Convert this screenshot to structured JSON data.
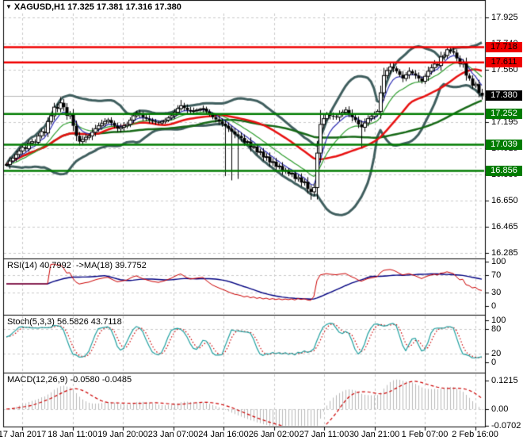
{
  "window": {
    "title_symbol": "XAGUSD,H1",
    "title_quotes": "17.325 17.381 17.316 17.380"
  },
  "icons": {
    "dropdown_glyph": "▼"
  },
  "chart_data": {
    "type": "candlestick",
    "symbol": "XAGUSD",
    "timeframe": "H1",
    "quotes": {
      "open": 17.325,
      "high": 17.381,
      "low": 17.316,
      "close": 17.38
    },
    "x_labels": [
      "17 Jan 2017",
      "18 Jan 11:00",
      "19 Jan 20:00",
      "23 Jan 07:00",
      "24 Jan 16:00",
      "26 Jan 02:00",
      "27 Jan 11:00",
      "30 Jan 21:00",
      "1 Feb 07:00",
      "2 Feb 16:00"
    ],
    "price_axis": {
      "ticks": [
        17.925,
        17.74,
        17.56,
        17.38,
        17.195,
        17.015,
        16.83,
        16.65,
        16.465,
        16.285
      ]
    },
    "price_badges": [
      {
        "text": "17.718",
        "price": 17.718,
        "bg": "#f00000",
        "fg": "#000000"
      },
      {
        "text": "17.611",
        "price": 17.611,
        "bg": "#f00000",
        "fg": "#000000"
      },
      {
        "text": "17.380",
        "price": 17.38,
        "bg": "#000000",
        "fg": "#ffffff"
      },
      {
        "text": "17.252",
        "price": 17.252,
        "bg": "#007c00",
        "fg": "#ffffff"
      },
      {
        "text": "17.039",
        "price": 17.039,
        "bg": "#007c00",
        "fg": "#ffffff"
      },
      {
        "text": "16.856",
        "price": 16.856,
        "bg": "#007c00",
        "fg": "#ffffff"
      }
    ],
    "horizontal_lines": [
      {
        "price": 17.718,
        "color": "#f00000",
        "width": 2.5
      },
      {
        "price": 17.611,
        "color": "#f00000",
        "width": 2.5
      },
      {
        "price": 17.252,
        "color": "#007c00",
        "width": 2.5
      },
      {
        "price": 17.039,
        "color": "#007c00",
        "width": 2.5
      },
      {
        "price": 16.856,
        "color": "#007c00",
        "width": 2.5
      }
    ],
    "current_price": {
      "value": 17.38,
      "line_color": "#b9b9b9"
    },
    "candles": {
      "first_open": 16.895,
      "closes": [
        16.9,
        16.925,
        16.945,
        16.97,
        16.995,
        17.02,
        17.01,
        17.05,
        17.06,
        17.055,
        17.1,
        17.13,
        17.12,
        17.2,
        17.24,
        17.3,
        17.29,
        17.33,
        17.3,
        17.24,
        17.25,
        17.17,
        17.1,
        17.06,
        17.075,
        17.09,
        17.1,
        17.125,
        17.15,
        17.17,
        17.185,
        17.2,
        17.21,
        17.19,
        17.17,
        17.15,
        17.16,
        17.17,
        17.18,
        17.21,
        17.24,
        17.26,
        17.245,
        17.23,
        17.22,
        17.21,
        17.2,
        17.195,
        17.19,
        17.2,
        17.21,
        17.225,
        17.24,
        17.265,
        17.29,
        17.31,
        17.295,
        17.28,
        17.27,
        17.275,
        17.28,
        17.285,
        17.29,
        17.27,
        17.25,
        17.23,
        17.215,
        17.2,
        17.185,
        17.17,
        17.15,
        17.13,
        17.11,
        17.1,
        17.085,
        17.055,
        17.06,
        17.02,
        17.025,
        16.985,
        16.99,
        16.95,
        16.955,
        16.915,
        16.92,
        16.885,
        16.89,
        16.855,
        16.86,
        16.835,
        16.84,
        16.8,
        16.81,
        16.775,
        16.78,
        16.73,
        16.71,
        16.74,
        16.98,
        17.18,
        17.22,
        17.25,
        17.24,
        17.235,
        17.23,
        17.25,
        17.265,
        17.28,
        17.255,
        17.23,
        17.21,
        17.18,
        17.16,
        17.19,
        17.22,
        17.235,
        17.25,
        17.27,
        17.4,
        17.52,
        17.555,
        17.58,
        17.57,
        17.55,
        17.525,
        17.5,
        17.525,
        17.55,
        17.535,
        17.52,
        17.5,
        17.48,
        17.515,
        17.55,
        17.575,
        17.6,
        17.59,
        17.65,
        17.66,
        17.7,
        17.69,
        17.68,
        17.64,
        17.6,
        17.61,
        17.52,
        17.5,
        17.45,
        17.46,
        17.4,
        17.38
      ],
      "spike_lows": {
        "69": 16.82,
        "71": 16.79,
        "73": 16.8,
        "96": 16.655,
        "112": 17.02
      },
      "spike_highs": {
        "17": 17.37,
        "55": 17.35,
        "99": 17.28,
        "139": 17.72,
        "141": 17.715
      }
    },
    "overlays": {
      "bollinger": {
        "period": 20,
        "deviation": 2,
        "color": "#3f5e5e",
        "width": 3
      },
      "ma_fast": {
        "period": 6,
        "type": "ema",
        "color": "#2f2fb5",
        "width": 1.2
      },
      "ma_mid": {
        "period": 14,
        "type": "ema",
        "color": "#2f9e2f",
        "width": 1.2
      },
      "ma_slow": {
        "period": 30,
        "type": "sma",
        "color": "#e81010",
        "width": 2.5
      },
      "ma_long": {
        "period": 60,
        "type": "sma",
        "color": "#156815",
        "width": 2.5
      }
    },
    "panels": {
      "rsi": {
        "label": "RSI(14) 40.7992  ->MA(18) 39.7752",
        "value": 40.7992,
        "ma_value": 39.7752,
        "period": 14,
        "ma_period": 18,
        "levels": [
          70,
          30
        ],
        "axis": [
          100,
          70,
          30,
          0
        ],
        "line_color": "#cc0000",
        "ma_color": "#000080"
      },
      "stoch": {
        "label": "Stoch(5,3,3) 56.5826 43.7118",
        "k": 56.5826,
        "d": 43.7118,
        "params": [
          5,
          3,
          3
        ],
        "levels": [
          80,
          20
        ],
        "axis": [
          100,
          80,
          20,
          0
        ],
        "k_color": "#20a0a0",
        "d_color": "#cc0000"
      },
      "macd": {
        "label": "MACD(12,26,9) -0.0580 -0.0485",
        "macd": -0.058,
        "signal": -0.0485,
        "params": [
          12,
          26,
          9
        ],
        "levels": [
          0
        ],
        "axis": [
          0.1215,
          0.0,
          -0.0702
        ],
        "axis_text": [
          "0.1215",
          "0.00",
          "-0.0702"
        ],
        "hist_color": "#b9b9b9",
        "signal_color": "#cc0000"
      }
    },
    "colors": {
      "background": "#ffffff",
      "grid": "#c9c9c9",
      "candle": "#000000",
      "border": "#000000"
    }
  }
}
